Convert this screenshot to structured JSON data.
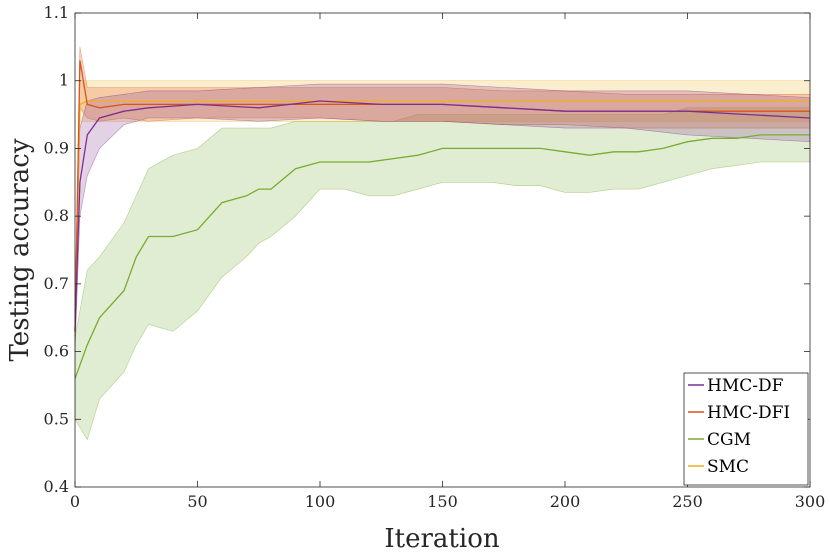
{
  "chart_data": {
    "type": "line",
    "title": "",
    "xlabel": "Iteration",
    "ylabel": "Testing accuracy",
    "xlim": [
      0,
      300
    ],
    "ylim": [
      0.4,
      1.1
    ],
    "xticks": [
      0,
      50,
      100,
      150,
      200,
      250,
      300
    ],
    "yticks": [
      0.4,
      0.5,
      0.6,
      0.7,
      0.8,
      0.9,
      1,
      1.1
    ],
    "ytick_labels": [
      "0.4",
      "0.5",
      "0.6",
      "0.7",
      "0.8",
      "0.9",
      "1",
      "1.1"
    ],
    "grid": false,
    "legend_position": "bottom-right",
    "series": [
      {
        "name": "HMC-DF",
        "color": "#7E2F8E",
        "band_color": "#7E2F8E",
        "x": [
          0,
          2,
          5,
          10,
          20,
          30,
          50,
          75,
          100,
          125,
          150,
          175,
          200,
          225,
          250,
          275,
          300
        ],
        "y": [
          0.63,
          0.85,
          0.92,
          0.945,
          0.955,
          0.96,
          0.965,
          0.96,
          0.97,
          0.965,
          0.965,
          0.96,
          0.955,
          0.955,
          0.955,
          0.95,
          0.945
        ],
        "lower": [
          0.6,
          0.8,
          0.86,
          0.9,
          0.935,
          0.945,
          0.945,
          0.94,
          0.945,
          0.94,
          0.94,
          0.935,
          0.93,
          0.93,
          0.92,
          0.915,
          0.91
        ],
        "upper": [
          0.66,
          0.93,
          0.97,
          0.975,
          0.98,
          0.985,
          0.985,
          0.99,
          0.995,
          0.995,
          0.995,
          0.99,
          0.985,
          0.985,
          0.985,
          0.98,
          0.975
        ]
      },
      {
        "name": "HMC-DFI",
        "color": "#D95319",
        "band_color": "#D95319",
        "x": [
          0,
          2,
          5,
          10,
          20,
          30,
          50,
          75,
          100,
          125,
          150,
          175,
          200,
          225,
          250,
          275,
          300
        ],
        "y": [
          0.63,
          1.03,
          0.965,
          0.96,
          0.965,
          0.965,
          0.965,
          0.965,
          0.965,
          0.965,
          0.965,
          0.96,
          0.955,
          0.955,
          0.955,
          0.955,
          0.955
        ],
        "lower": [
          0.62,
          0.96,
          0.945,
          0.94,
          0.945,
          0.94,
          0.945,
          0.945,
          0.945,
          0.94,
          0.94,
          0.935,
          0.935,
          0.93,
          0.93,
          0.93,
          0.93
        ],
        "upper": [
          0.64,
          1.05,
          0.99,
          0.99,
          0.99,
          0.99,
          0.99,
          0.99,
          0.99,
          0.99,
          0.99,
          0.985,
          0.985,
          0.98,
          0.98,
          0.98,
          0.98
        ]
      },
      {
        "name": "CGM",
        "color": "#77AC30",
        "band_color": "#77AC30",
        "x": [
          0,
          5,
          10,
          20,
          25,
          30,
          40,
          50,
          60,
          70,
          75,
          80,
          90,
          100,
          110,
          120,
          130,
          140,
          150,
          160,
          170,
          180,
          190,
          200,
          210,
          220,
          230,
          240,
          250,
          260,
          270,
          280,
          290,
          300
        ],
        "y": [
          0.56,
          0.61,
          0.65,
          0.69,
          0.74,
          0.77,
          0.77,
          0.78,
          0.82,
          0.83,
          0.84,
          0.84,
          0.87,
          0.88,
          0.88,
          0.88,
          0.885,
          0.89,
          0.9,
          0.9,
          0.9,
          0.9,
          0.9,
          0.895,
          0.89,
          0.895,
          0.895,
          0.9,
          0.91,
          0.915,
          0.915,
          0.92,
          0.92,
          0.92
        ],
        "lower": [
          0.5,
          0.47,
          0.53,
          0.57,
          0.61,
          0.64,
          0.63,
          0.66,
          0.71,
          0.74,
          0.76,
          0.77,
          0.8,
          0.84,
          0.84,
          0.83,
          0.83,
          0.84,
          0.85,
          0.85,
          0.85,
          0.845,
          0.845,
          0.835,
          0.835,
          0.84,
          0.84,
          0.85,
          0.86,
          0.87,
          0.875,
          0.88,
          0.88,
          0.88
        ],
        "upper": [
          0.62,
          0.72,
          0.74,
          0.79,
          0.83,
          0.87,
          0.89,
          0.9,
          0.93,
          0.93,
          0.93,
          0.93,
          0.94,
          0.94,
          0.94,
          0.94,
          0.94,
          0.95,
          0.95,
          0.95,
          0.95,
          0.95,
          0.95,
          0.95,
          0.95,
          0.95,
          0.95,
          0.95,
          0.96,
          0.96,
          0.96,
          0.96,
          0.96,
          0.96
        ]
      },
      {
        "name": "SMC",
        "color": "#EDB120",
        "band_color": "#EDB120",
        "x": [
          0,
          2,
          5,
          10,
          20,
          50,
          100,
          150,
          200,
          250,
          300
        ],
        "y": [
          0.63,
          0.965,
          0.97,
          0.97,
          0.97,
          0.97,
          0.97,
          0.97,
          0.97,
          0.97,
          0.97
        ],
        "lower": [
          0.6,
          0.94,
          0.94,
          0.94,
          0.94,
          0.94,
          0.94,
          0.94,
          0.94,
          0.94,
          0.94
        ],
        "upper": [
          0.66,
          1.0,
          1.0,
          1.0,
          1.0,
          1.0,
          1.0,
          1.0,
          1.0,
          1.0,
          1.0
        ]
      }
    ]
  }
}
